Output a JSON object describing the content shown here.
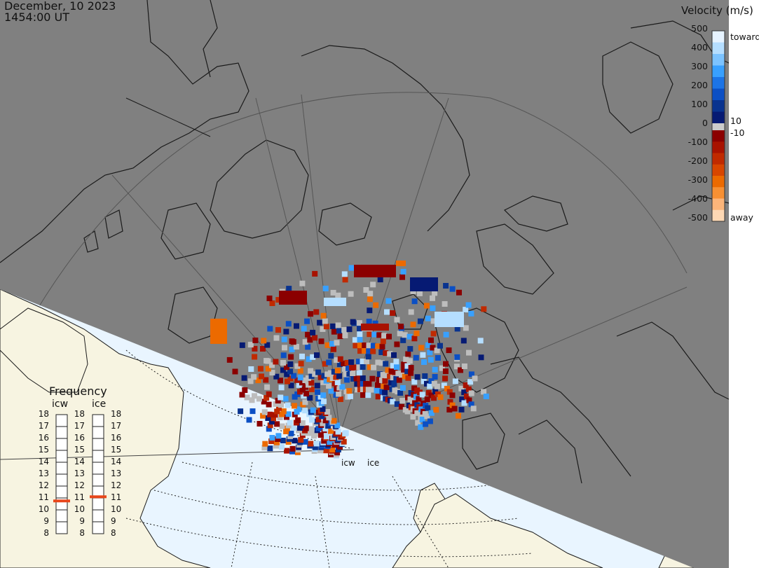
{
  "header": {
    "date": "December, 10 2023",
    "time": "1454:00 UT"
  },
  "colorbar": {
    "title": "Velocity (m/s)",
    "left_ticks": [
      "500",
      "400",
      "300",
      "200",
      "100",
      "0",
      "-100",
      "-200",
      "-300",
      "-400",
      "-500"
    ],
    "right_labels": {
      "toward": "toward",
      "plus10": "10",
      "minus10": "-10",
      "away": "away"
    },
    "toward_colors": [
      "#e6f3ff",
      "#b5deff",
      "#7cc3ff",
      "#38a0ff",
      "#1c74e6",
      "#0b4fc4",
      "#09338f",
      "#061a73"
    ],
    "away_colors": [
      "#8b0000",
      "#a81200",
      "#c02a00",
      "#d84600",
      "#ec6a00",
      "#f79033",
      "#fcb57a",
      "#fdd8b4"
    ]
  },
  "frequency": {
    "title": "Frequency",
    "radars": [
      {
        "name": "icw",
        "selected_mhz": 10.75
      },
      {
        "name": "ice",
        "selected_mhz": 11.1
      }
    ],
    "scale": [
      "18",
      "17",
      "16",
      "15",
      "14",
      "13",
      "12",
      "11",
      "10",
      "9",
      "8"
    ]
  },
  "radar_sites": {
    "west": "icw",
    "east": "ice"
  },
  "map_colors": {
    "night": "#808080",
    "day_land": "#f7f4e1",
    "day_ocean": "#e9f5ff",
    "coast": "#1a1a1a",
    "grid": "#5a5a5a",
    "ground_scatter": "#bdbdbd"
  }
}
